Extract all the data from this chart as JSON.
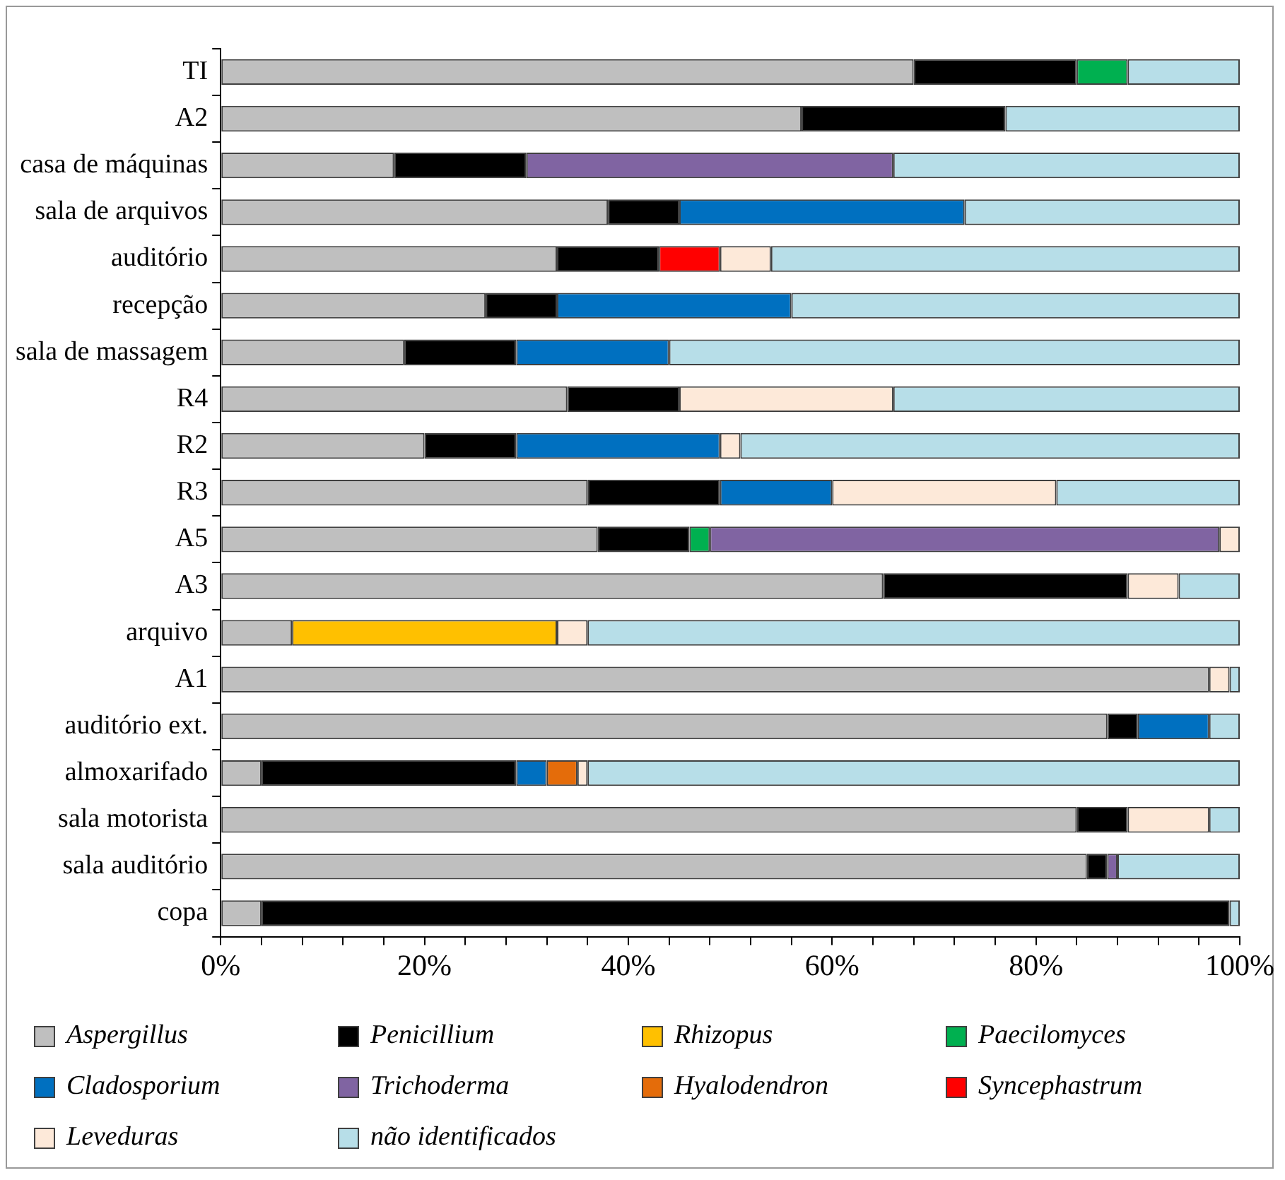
{
  "chart_data": {
    "type": "bar",
    "orientation": "horizontal",
    "stacked": true,
    "categories": [
      "TI",
      "A2",
      "casa de máquinas",
      "sala de arquivos",
      "auditório",
      "recepção",
      "sala de massagem",
      "R4",
      "R2",
      "R3",
      "A5",
      "A3",
      "arquivo",
      "A1",
      "auditório ext.",
      "almoxarifado",
      "sala motorista",
      "sala auditório",
      "copa"
    ],
    "series": [
      {
        "name": "Aspergillus",
        "color": "#bfbfbf",
        "values": [
          68,
          57,
          17,
          38,
          33,
          26,
          18,
          34,
          20,
          36,
          37,
          65,
          7,
          97,
          87,
          4,
          84,
          85,
          4
        ]
      },
      {
        "name": "Penicillium",
        "color": "#000000",
        "values": [
          16,
          20,
          13,
          7,
          10,
          7,
          11,
          11,
          9,
          13,
          9,
          24,
          null,
          null,
          3,
          25,
          5,
          2,
          95
        ]
      },
      {
        "name": "Rhizopus",
        "color": "#ffc000",
        "values": [
          null,
          null,
          null,
          null,
          null,
          null,
          null,
          null,
          null,
          null,
          null,
          null,
          26,
          null,
          null,
          null,
          null,
          null,
          null
        ]
      },
      {
        "name": "Paecilomyces",
        "color": "#00b050",
        "values": [
          5,
          null,
          null,
          null,
          null,
          null,
          null,
          null,
          null,
          null,
          2,
          null,
          null,
          null,
          null,
          null,
          null,
          null,
          null
        ]
      },
      {
        "name": "Cladosporium",
        "color": "#0070c0",
        "values": [
          null,
          null,
          null,
          28,
          null,
          23,
          15,
          null,
          20,
          11,
          null,
          null,
          null,
          null,
          7,
          3,
          null,
          null,
          null
        ]
      },
      {
        "name": "Trichoderma",
        "color": "#8064a2",
        "values": [
          null,
          null,
          36,
          null,
          null,
          null,
          null,
          null,
          null,
          null,
          50,
          null,
          null,
          null,
          null,
          null,
          null,
          1,
          null
        ]
      },
      {
        "name": "Hyalodendron",
        "color": "#e46c0a",
        "values": [
          null,
          null,
          null,
          null,
          null,
          null,
          null,
          null,
          null,
          null,
          null,
          null,
          null,
          null,
          null,
          3,
          null,
          null,
          null
        ]
      },
      {
        "name": "Syncephastrum",
        "color": "#ff0000",
        "values": [
          null,
          null,
          null,
          null,
          6,
          null,
          null,
          null,
          null,
          null,
          null,
          null,
          null,
          null,
          null,
          null,
          null,
          null,
          null
        ]
      },
      {
        "name": "Leveduras",
        "color": "#fde9d9",
        "values": [
          null,
          null,
          null,
          null,
          5,
          null,
          null,
          21,
          2,
          22,
          2,
          5,
          3,
          2,
          null,
          1,
          8,
          null,
          null
        ]
      },
      {
        "name": "não identificados",
        "color": "#b7dee8",
        "values": [
          11,
          23,
          34,
          27,
          46,
          44,
          56,
          34,
          49,
          18,
          null,
          6,
          64,
          1,
          3,
          64,
          3,
          12,
          1
        ]
      }
    ],
    "xlim": [
      0,
      100
    ],
    "xticks": [
      {
        "value": 0,
        "label": "0%"
      },
      {
        "value": 4,
        "label": null
      },
      {
        "value": 8,
        "label": null
      },
      {
        "value": 12,
        "label": null
      },
      {
        "value": 16,
        "label": null
      },
      {
        "value": 20,
        "label": "20%"
      },
      {
        "value": 24,
        "label": null
      },
      {
        "value": 28,
        "label": null
      },
      {
        "value": 32,
        "label": null
      },
      {
        "value": 36,
        "label": null
      },
      {
        "value": 40,
        "label": "40%"
      },
      {
        "value": 44,
        "label": null
      },
      {
        "value": 48,
        "label": null
      },
      {
        "value": 52,
        "label": null
      },
      {
        "value": 56,
        "label": null
      },
      {
        "value": 60,
        "label": "60%"
      },
      {
        "value": 64,
        "label": null
      },
      {
        "value": 68,
        "label": null
      },
      {
        "value": 72,
        "label": null
      },
      {
        "value": 76,
        "label": null
      },
      {
        "value": 80,
        "label": "80%"
      },
      {
        "value": 84,
        "label": null
      },
      {
        "value": 88,
        "label": null
      },
      {
        "value": 92,
        "label": null
      },
      {
        "value": 96,
        "label": null
      },
      {
        "value": 100,
        "label": "100%"
      }
    ],
    "grid": false,
    "legend": "bottom"
  }
}
